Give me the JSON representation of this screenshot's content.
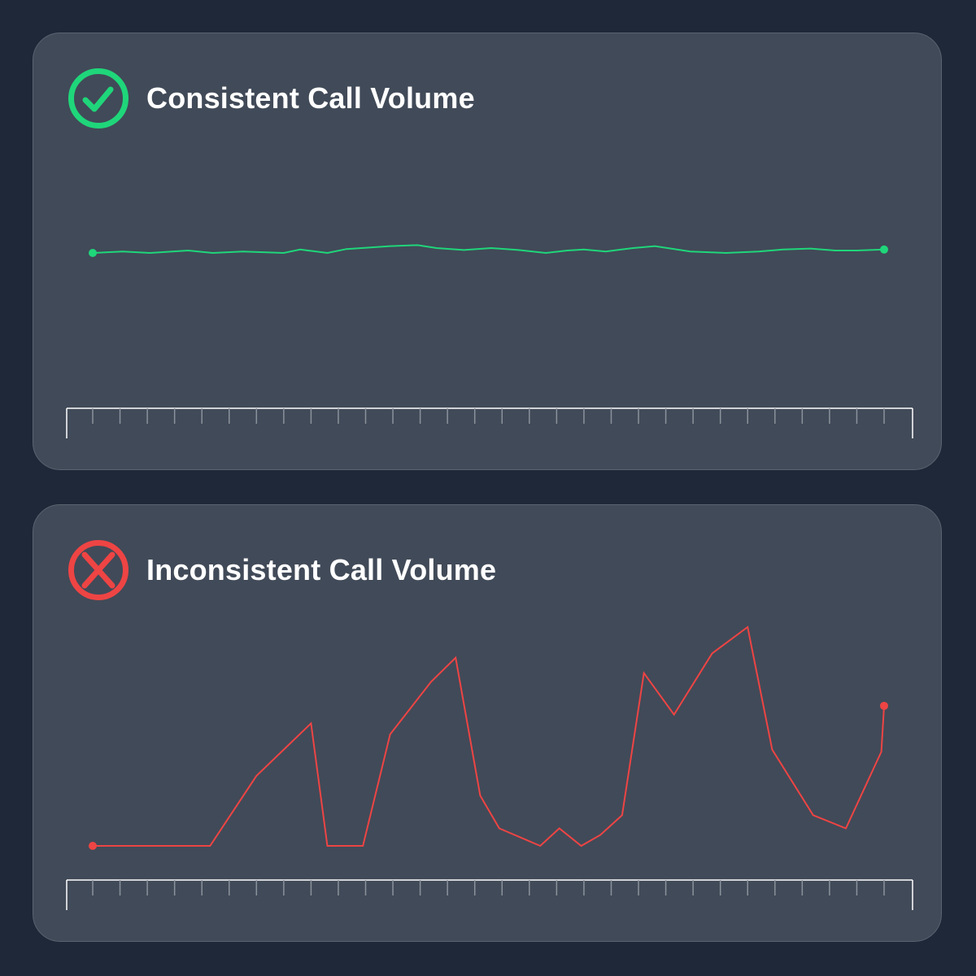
{
  "colors": {
    "background": "#1e2838",
    "card": "#414a58",
    "consistent": "#1fd67a",
    "inconsistent": "#ee4444",
    "axis": "#ffffff",
    "tick": "#8a929c"
  },
  "panels": [
    {
      "title": "Consistent Call Volume",
      "status_icon": "check-circle-icon",
      "status": "good"
    },
    {
      "title": "Inconsistent Call Volume",
      "status_icon": "x-circle-icon",
      "status": "bad"
    }
  ],
  "chart_data": [
    {
      "type": "line",
      "title": "Consistent Call Volume",
      "xlabel": "",
      "ylabel": "",
      "x_ticks": 31,
      "grid": false,
      "ylim": [
        0,
        100
      ],
      "series": [
        {
          "color": "#1fd67a",
          "points": [
            [
              0,
              50
            ],
            [
              1.1,
              53
            ],
            [
              2.1,
              50
            ],
            [
              3.5,
              55
            ],
            [
              4.4,
              50
            ],
            [
              5.5,
              53
            ],
            [
              7.0,
              50
            ],
            [
              7.6,
              57
            ],
            [
              8.6,
              50
            ],
            [
              9.3,
              58
            ],
            [
              10.9,
              64
            ],
            [
              11.9,
              66
            ],
            [
              12.6,
              60
            ],
            [
              13.6,
              56
            ],
            [
              14.6,
              60
            ],
            [
              15.6,
              56
            ],
            [
              16.6,
              50
            ],
            [
              17.4,
              55
            ],
            [
              18.0,
              57
            ],
            [
              18.8,
              53
            ],
            [
              19.8,
              60
            ],
            [
              20.6,
              64
            ],
            [
              21.9,
              53
            ],
            [
              23.2,
              50
            ],
            [
              24.4,
              53
            ],
            [
              25.3,
              57
            ],
            [
              26.3,
              59
            ],
            [
              27.2,
              55
            ],
            [
              28.0,
              55
            ],
            [
              29.0,
              57
            ]
          ]
        }
      ]
    },
    {
      "type": "line",
      "title": "Inconsistent Call Volume",
      "xlabel": "",
      "ylabel": "",
      "x_ticks": 31,
      "grid": false,
      "ylim": [
        0,
        100
      ],
      "series": [
        {
          "color": "#ee4444",
          "points": [
            [
              0,
              0
            ],
            [
              4.3,
              0
            ],
            [
              6.0,
              32
            ],
            [
              7.0,
              44
            ],
            [
              8.0,
              56
            ],
            [
              8.6,
              0
            ],
            [
              9.9,
              0
            ],
            [
              10.9,
              51
            ],
            [
              12.4,
              75
            ],
            [
              13.3,
              86
            ],
            [
              14.2,
              23
            ],
            [
              14.9,
              8
            ],
            [
              16.4,
              0
            ],
            [
              17.1,
              8
            ],
            [
              17.9,
              0
            ],
            [
              18.6,
              5
            ],
            [
              19.4,
              14
            ],
            [
              20.2,
              79
            ],
            [
              21.3,
              60
            ],
            [
              22.7,
              88
            ],
            [
              24.0,
              100
            ],
            [
              24.9,
              44
            ],
            [
              26.4,
              14
            ],
            [
              27.6,
              8
            ],
            [
              28.9,
              43
            ],
            [
              29.0,
              64
            ]
          ]
        }
      ]
    }
  ]
}
